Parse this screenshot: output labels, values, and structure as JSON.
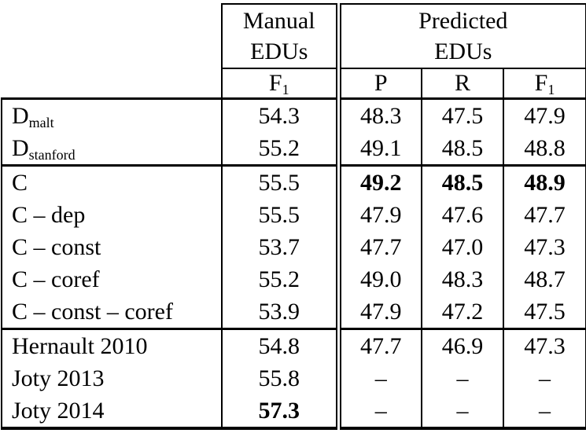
{
  "table": {
    "header": {
      "manual": {
        "line1": "Manual",
        "line2": "EDUs"
      },
      "predicted": {
        "line1": "Predicted",
        "line2": "EDUs"
      },
      "metrics": [
        {
          "main": "F",
          "sub": "1"
        },
        {
          "main": "P",
          "sub": ""
        },
        {
          "main": "R",
          "sub": ""
        },
        {
          "main": "F",
          "sub": "1"
        }
      ]
    },
    "rows": [
      {
        "label": {
          "main": "D",
          "sub": "malt"
        },
        "values": [
          "54.3",
          "48.3",
          "47.5",
          "47.9"
        ],
        "bold": [
          false,
          false,
          false,
          false
        ],
        "section_start": false
      },
      {
        "label": {
          "main": "D",
          "sub": "stanford"
        },
        "values": [
          "55.2",
          "49.1",
          "48.5",
          "48.8"
        ],
        "bold": [
          false,
          false,
          false,
          false
        ],
        "section_start": false
      },
      {
        "label": {
          "main": "C",
          "sub": ""
        },
        "values": [
          "55.5",
          "49.2",
          "48.5",
          "48.9"
        ],
        "bold": [
          false,
          true,
          true,
          true
        ],
        "section_start": true
      },
      {
        "label": {
          "main": "C – dep",
          "sub": ""
        },
        "values": [
          "55.5",
          "47.9",
          "47.6",
          "47.7"
        ],
        "bold": [
          false,
          false,
          false,
          false
        ],
        "section_start": false
      },
      {
        "label": {
          "main": "C – const",
          "sub": ""
        },
        "values": [
          "53.7",
          "47.7",
          "47.0",
          "47.3"
        ],
        "bold": [
          false,
          false,
          false,
          false
        ],
        "section_start": false
      },
      {
        "label": {
          "main": "C – coref",
          "sub": ""
        },
        "values": [
          "55.2",
          "49.0",
          "48.3",
          "48.7"
        ],
        "bold": [
          false,
          false,
          false,
          false
        ],
        "section_start": false
      },
      {
        "label": {
          "main": "C – const – coref",
          "sub": ""
        },
        "values": [
          "53.9",
          "47.9",
          "47.2",
          "47.5"
        ],
        "bold": [
          false,
          false,
          false,
          false
        ],
        "section_start": false
      },
      {
        "label": {
          "main": "Hernault 2010",
          "sub": ""
        },
        "values": [
          "54.8",
          "47.7",
          "46.9",
          "47.3"
        ],
        "bold": [
          false,
          false,
          false,
          false
        ],
        "section_start": true
      },
      {
        "label": {
          "main": "Joty 2013",
          "sub": ""
        },
        "values": [
          "55.8",
          "–",
          "–",
          "–"
        ],
        "bold": [
          false,
          false,
          false,
          false
        ],
        "section_start": false
      },
      {
        "label": {
          "main": "Joty 2014",
          "sub": ""
        },
        "values": [
          "57.3",
          "–",
          "–",
          "–"
        ],
        "bold": [
          true,
          false,
          false,
          false
        ],
        "section_start": false
      }
    ]
  }
}
